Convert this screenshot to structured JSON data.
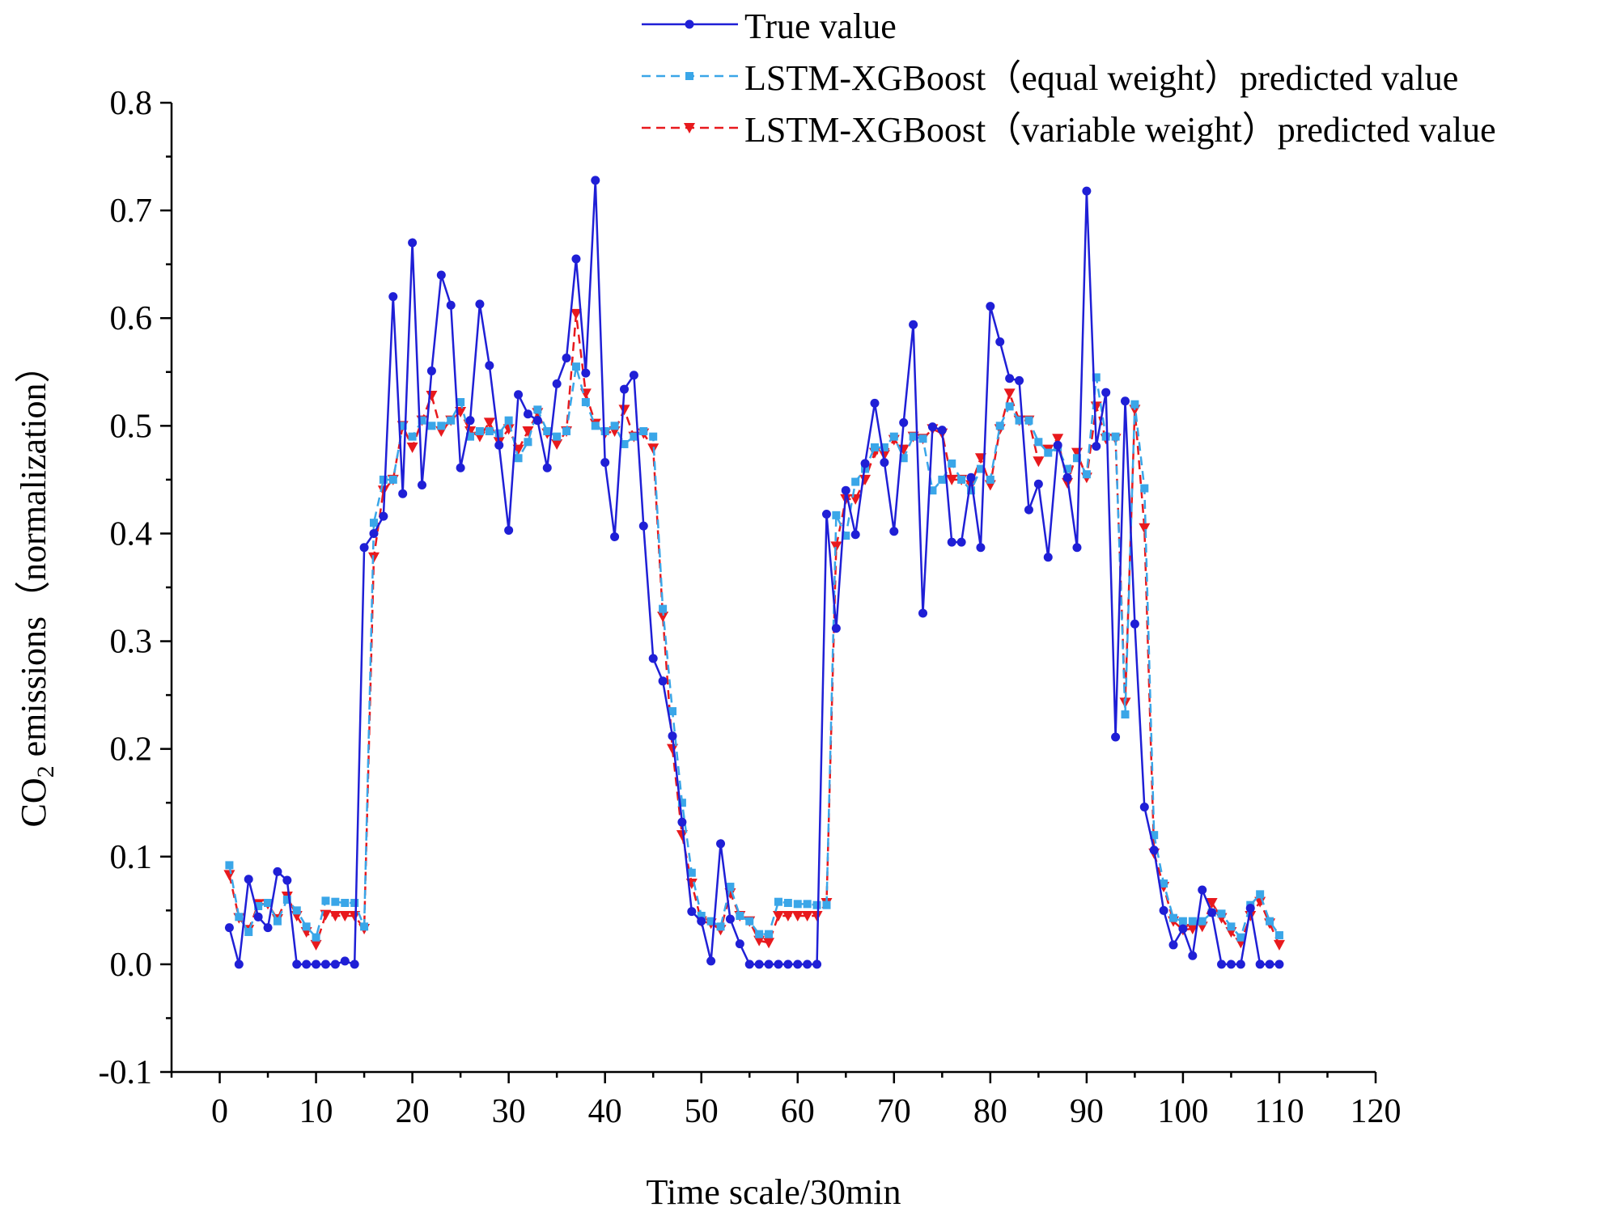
{
  "chart_data": {
    "type": "line",
    "title": "",
    "xlabel": "Time scale/30min",
    "ylabel_prefix": "CO",
    "ylabel_sub": "2",
    "ylabel_suffix": " emissions（normalization）",
    "xlim": [
      -5,
      120
    ],
    "ylim": [
      -0.1,
      0.8
    ],
    "xticks": [
      "0",
      "10",
      "20",
      "30",
      "40",
      "50",
      "60",
      "70",
      "80",
      "90",
      "100",
      "110",
      "120"
    ],
    "xtick_values": [
      0,
      10,
      20,
      30,
      40,
      50,
      60,
      70,
      80,
      90,
      100,
      110,
      120
    ],
    "yticks": [
      "-0.1",
      "0.0",
      "0.1",
      "0.2",
      "0.3",
      "0.4",
      "0.5",
      "0.6",
      "0.7",
      "0.8"
    ],
    "ytick_values": [
      -0.1,
      0.0,
      0.1,
      0.2,
      0.3,
      0.4,
      0.5,
      0.6,
      0.7,
      0.8
    ],
    "grid": false,
    "legend_position": "top",
    "series": [
      {
        "name": "True value",
        "color": "#1f1fd6",
        "line": "solid",
        "marker": "circle",
        "x": [
          1,
          2,
          3,
          4,
          5,
          6,
          7,
          8,
          9,
          10,
          11,
          12,
          13,
          14,
          15,
          16,
          17,
          18,
          19,
          20,
          21,
          22,
          23,
          24,
          25,
          26,
          27,
          28,
          29,
          30,
          31,
          32,
          33,
          34,
          35,
          36,
          37,
          38,
          39,
          40,
          41,
          42,
          43,
          44,
          45,
          46,
          47,
          48,
          49,
          50,
          51,
          52,
          53,
          54,
          55,
          56,
          57,
          58,
          59,
          60,
          61,
          62,
          63,
          64,
          65,
          66,
          67,
          68,
          69,
          70,
          71,
          72,
          73,
          74,
          75,
          76,
          77,
          78,
          79,
          80,
          81,
          82,
          83,
          84,
          85,
          86,
          87,
          88,
          89,
          90,
          91,
          92,
          93,
          94,
          95,
          96,
          97,
          98,
          99,
          100,
          101,
          102,
          103,
          104,
          105,
          106,
          107,
          108,
          109,
          110
        ],
        "values": [
          0.034,
          0.0,
          0.079,
          0.044,
          0.034,
          0.086,
          0.078,
          0.0,
          0.0,
          0.0,
          0.0,
          0.0,
          0.003,
          0.0,
          0.387,
          0.4,
          0.416,
          0.62,
          0.437,
          0.67,
          0.445,
          0.551,
          0.64,
          0.612,
          0.461,
          0.505,
          0.613,
          0.556,
          0.482,
          0.403,
          0.529,
          0.511,
          0.505,
          0.461,
          0.539,
          0.563,
          0.655,
          0.549,
          0.728,
          0.466,
          0.397,
          0.534,
          0.547,
          0.407,
          0.284,
          0.263,
          0.212,
          0.132,
          0.049,
          0.04,
          0.003,
          0.112,
          0.042,
          0.019,
          0.0,
          0.0,
          0.0,
          0.0,
          0.0,
          0.0,
          0.0,
          0.0,
          0.418,
          0.312,
          0.44,
          0.399,
          0.465,
          0.521,
          0.466,
          0.402,
          0.503,
          0.594,
          0.326,
          0.499,
          0.496,
          0.392,
          0.392,
          0.452,
          0.387,
          0.611,
          0.578,
          0.544,
          0.542,
          0.422,
          0.446,
          0.378,
          0.482,
          0.452,
          0.387,
          0.718,
          0.481,
          0.531,
          0.211,
          0.523,
          0.316,
          0.146,
          0.106,
          0.05,
          0.018,
          0.033,
          0.008,
          0.069,
          0.048,
          0.0,
          0.0,
          0.0,
          0.052,
          0.0,
          0.0,
          0.0
        ]
      },
      {
        "name": "LSTM-XGBoost（equal weight）predicted value",
        "color": "#3aa6e8",
        "line": "dashed",
        "marker": "square",
        "x": [
          1,
          2,
          3,
          4,
          5,
          6,
          7,
          8,
          9,
          10,
          11,
          12,
          13,
          14,
          15,
          16,
          17,
          18,
          19,
          20,
          21,
          22,
          23,
          24,
          25,
          26,
          27,
          28,
          29,
          30,
          31,
          32,
          33,
          34,
          35,
          36,
          37,
          38,
          39,
          40,
          41,
          42,
          43,
          44,
          45,
          46,
          47,
          48,
          49,
          50,
          51,
          52,
          53,
          54,
          55,
          56,
          57,
          58,
          59,
          60,
          61,
          62,
          63,
          64,
          65,
          66,
          67,
          68,
          69,
          70,
          71,
          72,
          73,
          74,
          75,
          76,
          77,
          78,
          79,
          80,
          81,
          82,
          83,
          84,
          85,
          86,
          87,
          88,
          89,
          90,
          91,
          92,
          93,
          94,
          95,
          96,
          97,
          98,
          99,
          100,
          101,
          102,
          103,
          104,
          105,
          106,
          107,
          108,
          109,
          110
        ],
        "values": [
          0.092,
          0.044,
          0.03,
          0.054,
          0.057,
          0.04,
          0.06,
          0.05,
          0.035,
          0.025,
          0.059,
          0.058,
          0.057,
          0.057,
          0.035,
          0.41,
          0.45,
          0.45,
          0.5,
          0.49,
          0.505,
          0.5,
          0.5,
          0.505,
          0.522,
          0.49,
          0.495,
          0.495,
          0.493,
          0.505,
          0.47,
          0.485,
          0.515,
          0.495,
          0.49,
          0.495,
          0.555,
          0.522,
          0.5,
          0.495,
          0.5,
          0.483,
          0.49,
          0.495,
          0.49,
          0.33,
          0.235,
          0.15,
          0.085,
          0.045,
          0.04,
          0.035,
          0.072,
          0.045,
          0.04,
          0.028,
          0.028,
          0.058,
          0.057,
          0.056,
          0.056,
          0.055,
          0.055,
          0.417,
          0.398,
          0.448,
          0.46,
          0.48,
          0.48,
          0.49,
          0.47,
          0.49,
          0.488,
          0.44,
          0.45,
          0.465,
          0.45,
          0.44,
          0.46,
          0.45,
          0.5,
          0.518,
          0.505,
          0.505,
          0.485,
          0.475,
          0.48,
          0.46,
          0.47,
          0.455,
          0.545,
          0.49,
          0.49,
          0.232,
          0.52,
          0.442,
          0.12,
          0.075,
          0.043,
          0.04,
          0.04,
          0.04,
          0.048,
          0.047,
          0.035,
          0.025,
          0.055,
          0.065,
          0.04,
          0.027
        ]
      },
      {
        "name": "LSTM-XGBoost（variable weight）predicted value",
        "color": "#e8191d",
        "line": "dashed",
        "marker": "triangle-down",
        "x": [
          1,
          2,
          3,
          4,
          5,
          6,
          7,
          8,
          9,
          10,
          11,
          12,
          13,
          14,
          15,
          16,
          17,
          18,
          19,
          20,
          21,
          22,
          23,
          24,
          25,
          26,
          27,
          28,
          29,
          30,
          31,
          32,
          33,
          34,
          35,
          36,
          37,
          38,
          39,
          40,
          41,
          42,
          43,
          44,
          45,
          46,
          47,
          48,
          49,
          50,
          51,
          52,
          53,
          54,
          55,
          56,
          57,
          58,
          59,
          60,
          61,
          62,
          63,
          64,
          65,
          66,
          67,
          68,
          69,
          70,
          71,
          72,
          73,
          74,
          75,
          76,
          77,
          78,
          79,
          80,
          81,
          82,
          83,
          84,
          85,
          86,
          87,
          88,
          89,
          90,
          91,
          92,
          93,
          94,
          95,
          96,
          97,
          98,
          99,
          100,
          101,
          102,
          103,
          104,
          105,
          106,
          107,
          108,
          109,
          110
        ],
        "values": [
          0.083,
          0.043,
          0.032,
          0.056,
          0.056,
          0.042,
          0.063,
          0.045,
          0.03,
          0.018,
          0.046,
          0.045,
          0.045,
          0.045,
          0.033,
          0.378,
          0.44,
          0.45,
          0.5,
          0.48,
          0.505,
          0.528,
          0.495,
          0.505,
          0.513,
          0.495,
          0.49,
          0.503,
          0.485,
          0.497,
          0.478,
          0.495,
          0.512,
          0.493,
          0.483,
          0.495,
          0.604,
          0.53,
          0.502,
          0.493,
          0.495,
          0.515,
          0.49,
          0.493,
          0.479,
          0.323,
          0.2,
          0.12,
          0.075,
          0.04,
          0.038,
          0.032,
          0.066,
          0.045,
          0.04,
          0.022,
          0.02,
          0.045,
          0.045,
          0.045,
          0.045,
          0.045,
          0.057,
          0.388,
          0.432,
          0.432,
          0.45,
          0.475,
          0.473,
          0.487,
          0.478,
          0.49,
          0.488,
          0.497,
          0.493,
          0.45,
          0.45,
          0.445,
          0.47,
          0.445,
          0.497,
          0.53,
          0.505,
          0.505,
          0.467,
          0.478,
          0.488,
          0.447,
          0.475,
          0.452,
          0.518,
          0.488,
          0.488,
          0.243,
          0.515,
          0.405,
          0.103,
          0.072,
          0.04,
          0.032,
          0.033,
          0.035,
          0.057,
          0.043,
          0.03,
          0.02,
          0.045,
          0.058,
          0.038,
          0.018
        ]
      }
    ]
  }
}
